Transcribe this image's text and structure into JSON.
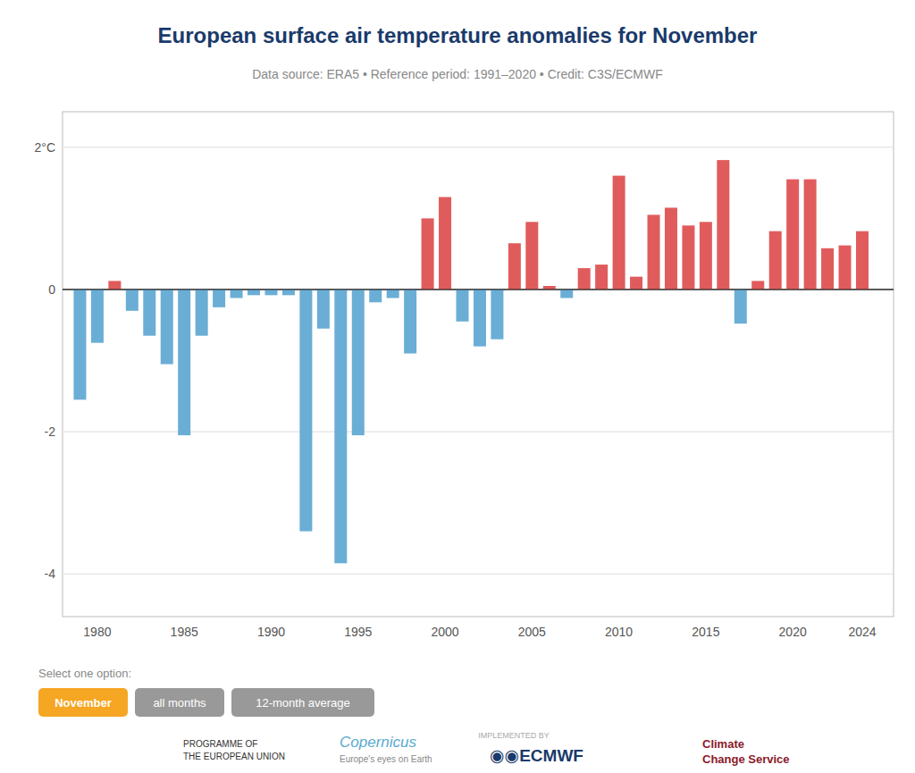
{
  "chart_data": {
    "type": "bar",
    "title": "European surface air temperature anomalies for November",
    "subtitle": "Data source: ERA5 • Reference period: 1991–2020 • Credit: C3S/ECMWF",
    "x": [
      1979,
      1980,
      1981,
      1982,
      1983,
      1984,
      1985,
      1986,
      1987,
      1988,
      1989,
      1990,
      1991,
      1992,
      1993,
      1994,
      1995,
      1996,
      1997,
      1998,
      1999,
      2000,
      2001,
      2002,
      2003,
      2004,
      2005,
      2006,
      2007,
      2008,
      2009,
      2010,
      2011,
      2012,
      2013,
      2014,
      2015,
      2016,
      2017,
      2018,
      2019,
      2020,
      2021,
      2022,
      2023,
      2024
    ],
    "values": [
      -1.55,
      -0.75,
      0.12,
      -0.3,
      -0.65,
      -1.05,
      -2.05,
      -0.65,
      -0.25,
      -0.12,
      -0.08,
      -0.08,
      -0.08,
      -3.4,
      -0.55,
      -3.85,
      -2.05,
      -0.18,
      -0.12,
      -0.9,
      1.0,
      1.3,
      -0.45,
      -0.8,
      -0.7,
      0.65,
      0.95,
      0.05,
      -0.12,
      0.3,
      0.35,
      1.6,
      0.18,
      1.05,
      1.15,
      0.9,
      0.95,
      1.82,
      -0.48,
      0.12,
      0.82,
      1.55,
      1.55,
      0.58,
      0.62,
      0.82
    ],
    "colors": [
      "#6aaed6",
      "#6aaed6",
      "#e05c5c",
      "#6aaed6",
      "#6aaed6",
      "#6aaed6",
      "#6aaed6",
      "#6aaed6",
      "#6aaed6",
      "#6aaed6",
      "#6aaed6",
      "#6aaed6",
      "#6aaed6",
      "#6aaed6",
      "#6aaed6",
      "#6aaed6",
      "#6aaed6",
      "#6aaed6",
      "#6aaed6",
      "#6aaed6",
      "#e05c5c",
      "#e05c5c",
      "#6aaed6",
      "#6aaed6",
      "#6aaed6",
      "#e05c5c",
      "#e05c5c",
      "#e05c5c",
      "#6aaed6",
      "#e05c5c",
      "#e05c5c",
      "#e05c5c",
      "#e05c5c",
      "#e05c5c",
      "#e05c5c",
      "#e05c5c",
      "#e05c5c",
      "#e05c5c",
      "#6aaed6",
      "#e05c5c",
      "#e05c5c",
      "#e05c5c",
      "#e05c5c",
      "#e05c5c",
      "#e05c5c",
      "#e05c5c"
    ],
    "xlim": [
      1978.0,
      2025.8
    ],
    "xticks": [
      1980,
      1985,
      1990,
      1995,
      2000,
      2005,
      2010,
      2015,
      2020,
      2024
    ],
    "ylim": [
      -4.6,
      2.5
    ],
    "yticks": [
      -4,
      -2,
      0,
      {
        "value": 2,
        "label": "2°C"
      }
    ],
    "grid": true,
    "annotations": [
      "Select one option:",
      "November",
      "all months",
      "12-month average",
      "PROGRAMME OF",
      "THE EUROPEAN UNION",
      "Copernicus",
      "Europe's eyes on Earth",
      "IMPLEMENTED BY",
      "◉◉ECMWF",
      "Climate",
      "Change Service"
    ]
  }
}
